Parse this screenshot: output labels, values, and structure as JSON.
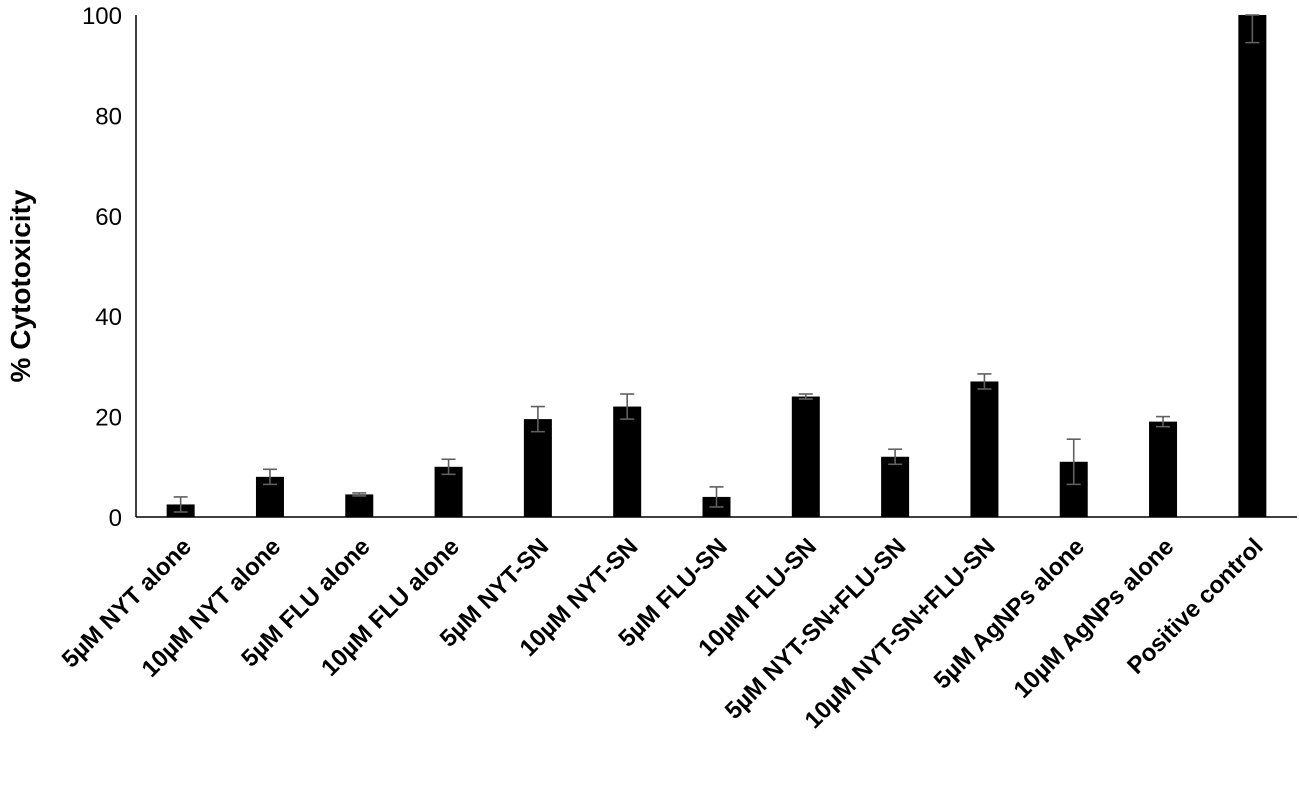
{
  "chart_data": {
    "type": "bar",
    "title": "",
    "xlabel": "",
    "ylabel": "% Cytotoxicity",
    "ylim": [
      0,
      100
    ],
    "yticks": [
      0,
      20,
      40,
      60,
      80,
      100
    ],
    "grid": false,
    "legend": "none",
    "categories": [
      "5µM NYT alone",
      "10µM NYT alone",
      "5µM FLU alone",
      "10µM FLU alone",
      "5µM NYT-SN",
      "10µM NYT-SN",
      "5µM FLU-SN",
      "10µM FLU-SN",
      "5µM NYT-SN+FLU-SN",
      "10µM NYT-SN+FLU-SN",
      "5µM AgNPs alone",
      "10µM AgNPs alone",
      "Positive control"
    ],
    "values": [
      2.5,
      8,
      4.5,
      10,
      19.5,
      22,
      4,
      24,
      12,
      27,
      11,
      19,
      100
    ],
    "errors": [
      1.5,
      1.5,
      0.3,
      1.5,
      2.5,
      2.5,
      2,
      0.5,
      1.5,
      1.5,
      4.5,
      1,
      5.5
    ],
    "colors": {
      "bar": "#000000",
      "error_bar": "#606060",
      "axis": "#000000"
    }
  }
}
